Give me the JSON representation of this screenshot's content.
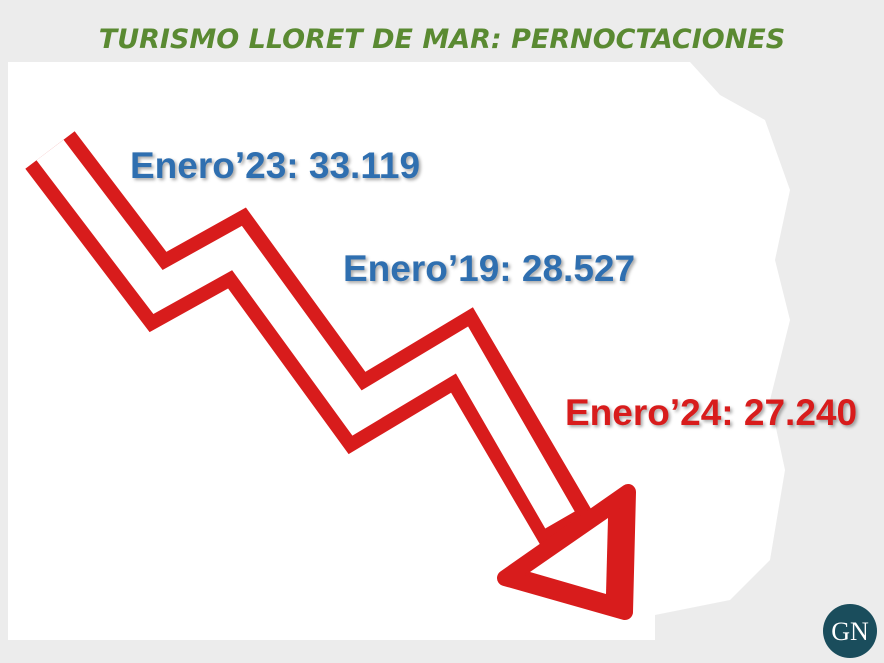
{
  "header": {
    "title": "TURISMO LLORET DE MAR: PERNOCTACIONES"
  },
  "labels": [
    "Enero’23: 33.119",
    "Enero’19: 28.527",
    "Enero’24: 27.240"
  ],
  "logo": {
    "text": "GN"
  }
}
